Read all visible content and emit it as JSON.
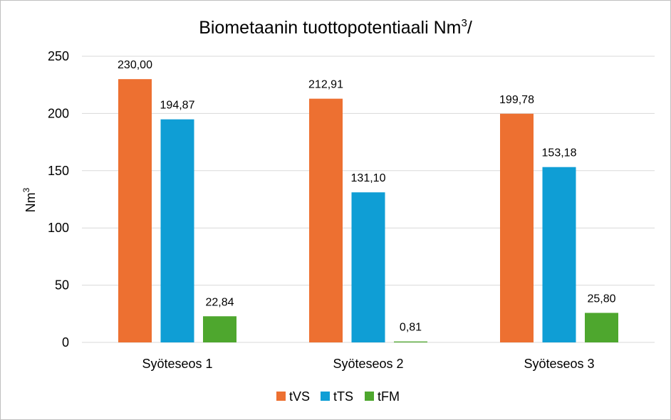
{
  "chart_data": {
    "type": "bar",
    "title": "Biometaanin  tuottopotentiaali Nm",
    "title_superscript": "3",
    "title_suffix": "/",
    "ylabel": "Nm",
    "ylabel_superscript": "3",
    "xlabel": "",
    "categories": [
      "Syöteseos 1",
      "Syöteseos 2",
      "Syöteseos 3"
    ],
    "series": [
      {
        "name": "tVS",
        "color": "#ed7031",
        "values": [
          230.0,
          212.91,
          199.78
        ],
        "labels": [
          "230,00",
          "212,91",
          "199,78"
        ]
      },
      {
        "name": "tTS",
        "color": "#0f9ed5",
        "values": [
          194.87,
          131.1,
          153.18
        ],
        "labels": [
          "194,87",
          "131,10",
          "153,18"
        ]
      },
      {
        "name": "tFM",
        "color": "#4ea72e",
        "values": [
          22.84,
          0.81,
          25.8
        ],
        "labels": [
          "22,84",
          "0,81",
          "25,80"
        ]
      }
    ],
    "ylim": [
      0,
      250
    ],
    "yticks": [
      0,
      50,
      100,
      150,
      200,
      250
    ],
    "grid": true,
    "legend_position": "bottom"
  }
}
